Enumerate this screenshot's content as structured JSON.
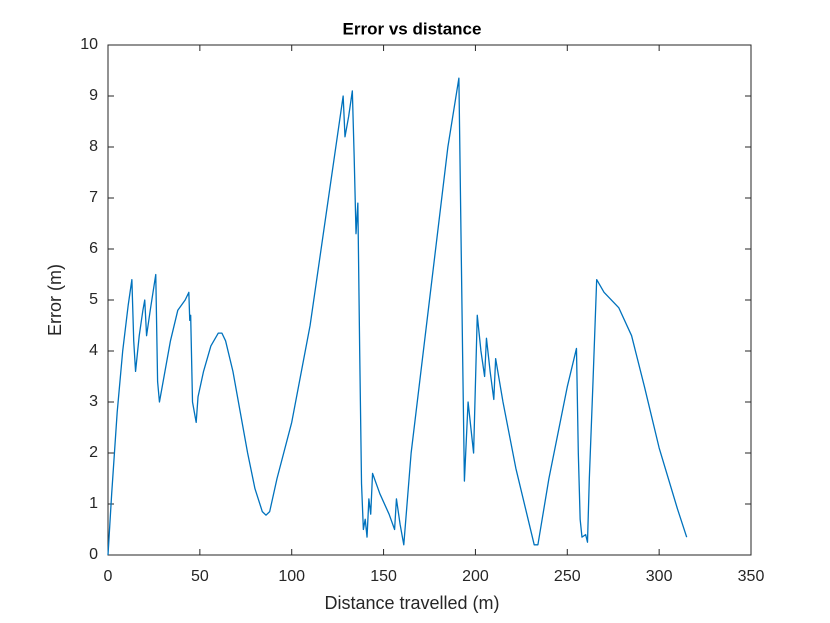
{
  "chart_data": {
    "type": "line",
    "title": "Error vs distance",
    "x_label": "Distance travelled (m)",
    "y_label": "Error (m)",
    "color": "#0072bd",
    "xlim": [
      0,
      350
    ],
    "ylim": [
      0,
      10
    ],
    "xticks": [
      0,
      50,
      100,
      150,
      200,
      250,
      300,
      350
    ],
    "yticks": [
      0,
      1,
      2,
      3,
      4,
      5,
      6,
      7,
      8,
      9,
      10
    ],
    "grid": false,
    "x": [
      0,
      2,
      5,
      8,
      11,
      13,
      14,
      15,
      17,
      19,
      20,
      21,
      23,
      26,
      27,
      28,
      30,
      34,
      38,
      42,
      44,
      44.5,
      45,
      46,
      47,
      48,
      49,
      52,
      56,
      60,
      62,
      64,
      68,
      72,
      76,
      80,
      84,
      86,
      88,
      92,
      100,
      110,
      120,
      126,
      128,
      129,
      131,
      133,
      134,
      135,
      136,
      137,
      138,
      139,
      140,
      141,
      142,
      143,
      144,
      148,
      153,
      156,
      157,
      159,
      161,
      165,
      175,
      185,
      191,
      193,
      194,
      196,
      199,
      201,
      203,
      205,
      206,
      208,
      210,
      211,
      215,
      222,
      228,
      232,
      234,
      240,
      250,
      255,
      256,
      257,
      258,
      260,
      261,
      262,
      264,
      266,
      270,
      278,
      285,
      292,
      300,
      310,
      315
    ],
    "values": [
      0,
      1.2,
      2.8,
      4,
      4.9,
      5.4,
      4.2,
      3.6,
      4.3,
      4.8,
      5,
      4.3,
      4.8,
      5.5,
      3.4,
      3,
      3.4,
      4.2,
      4.8,
      5,
      5.15,
      4.6,
      4.7,
      3,
      2.8,
      2.6,
      3.1,
      3.6,
      4.1,
      4.35,
      4.35,
      4.2,
      3.6,
      2.8,
      2,
      1.3,
      0.85,
      0.78,
      0.85,
      1.5,
      2.6,
      4.5,
      7,
      8.5,
      9,
      8.2,
      8.6,
      9.1,
      7.8,
      6.3,
      6.9,
      4,
      1.4,
      0.5,
      0.7,
      0.35,
      1.1,
      0.8,
      1.6,
      1.2,
      0.8,
      0.5,
      1.1,
      0.6,
      0.2,
      2,
      5,
      8,
      9.35,
      4,
      1.45,
      3,
      2,
      4.7,
      4,
      3.5,
      4.25,
      3.6,
      3.05,
      3.85,
      3,
      1.7,
      0.8,
      0.2,
      0.2,
      1.5,
      3.3,
      4.05,
      2,
      0.7,
      0.35,
      0.4,
      0.25,
      1.5,
      3.4,
      5.4,
      5.15,
      4.85,
      4.3,
      3.3,
      2.1,
      0.9,
      0.35
    ]
  }
}
